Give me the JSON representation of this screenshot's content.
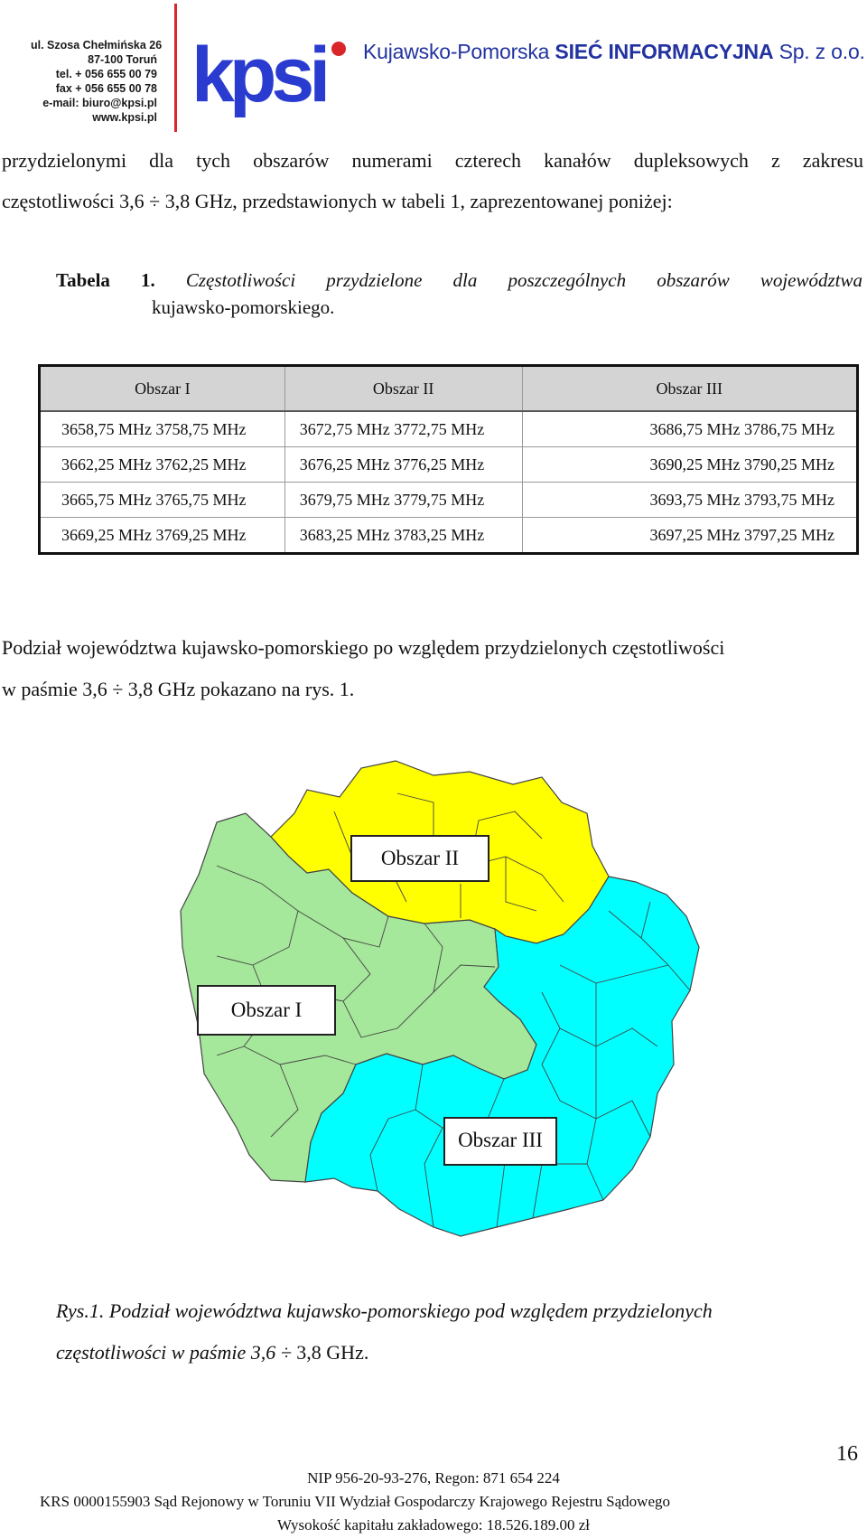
{
  "letterhead": {
    "address_lines": [
      "ul. Szosa Chełmińska 26",
      "87-100 Toruń",
      "tel. + 056 655 00 79",
      "fax + 056 655 00 78",
      "e-mail: biuro@kpsi.pl",
      "www.kpsi.pl"
    ],
    "logo_text": "kpsi",
    "company_prefix": "Kujawsko-Pomorska ",
    "company_strong": "SIEĆ INFORMACYJNA",
    "company_suffix": " Sp. z o.o.",
    "colors": {
      "brand_blue": "#2233a0",
      "logo_blue": "#2a3bd0",
      "accent_red": "#d8262b"
    }
  },
  "intro": {
    "line1": "przydzielonymi dla tych obszarów numerami czterech kanałów dupleksowych z zakresu",
    "line2": "częstotliwości 3,6 ÷ 3,8 GHz, przedstawionych w tabeli 1, zaprezentowanej poniżej:"
  },
  "table_caption": {
    "label": "Tabela  1.",
    "text_line1": "Częstotliwości  przydzielone  dla  poszczególnych  obszarów  województwa",
    "text_line2": "kujawsko-pomorskiego."
  },
  "table": {
    "headers": [
      "Obszar I",
      "Obszar II",
      "Obszar III"
    ],
    "rows": [
      [
        "3658,75 MHz 3758,75 MHz",
        "3672,75 MHz 3772,75 MHz",
        "3686,75 MHz 3786,75 MHz"
      ],
      [
        "3662,25 MHz 3762,25 MHz",
        "3676,25 MHz 3776,25 MHz",
        "3690,25 MHz 3790,25 MHz"
      ],
      [
        "3665,75 MHz 3765,75 MHz",
        "3679,75 MHz 3779,75 MHz",
        "3693,75 MHz 3793,75 MHz"
      ],
      [
        "3669,25 MHz 3769,25 MHz",
        "3683,25 MHz 3783,25 MHz",
        "3697,25 MHz 3797,25 MHz"
      ]
    ]
  },
  "division_text": {
    "line1": "Podział województwa kujawsko-pomorskiego po względem przydzielonych częstotliwości",
    "line2": "w paśmie 3,6 ÷ 3,8 GHz pokazano na rys. 1."
  },
  "map": {
    "labels": {
      "area1": "Obszar I",
      "area2": "Obszar II",
      "area3": "Obszar III"
    },
    "colors": {
      "area1": "#a6e89b",
      "area2": "#ffff00",
      "area3": "#00ffff"
    }
  },
  "figure_caption": {
    "line1": "Rys.1. Podział województwa kujawsko-pomorskiego pod względem przydzielonych",
    "line2_italic": "częstotliwości w paśmie 3,6 ÷ ",
    "line2_normal": "3,8 GHz."
  },
  "footer": {
    "page_number": "16",
    "line1": "NIP 956-20-93-276, Regon: 871 654 224",
    "line2": "KRS 0000155903 Sąd Rejonowy w Toruniu VII Wydział Gospodarczy Krajowego Rejestru Sądowego",
    "line3": "Wysokość kapitału zakładowego: 18.526.189.00 zł"
  }
}
